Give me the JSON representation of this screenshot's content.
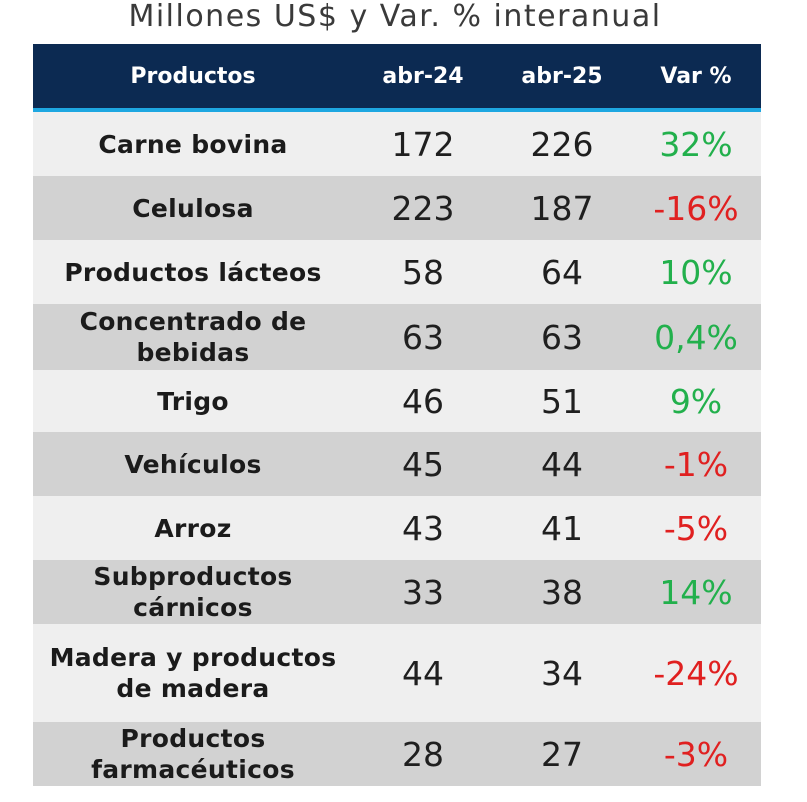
{
  "title": "Millones US$ y Var. % interanual",
  "colors": {
    "header_bg": "#0c2a52",
    "header_accent": "#1ea7e1",
    "positive": "#22b04c",
    "negative": "#e02020",
    "row_light": "#efefef",
    "row_dark": "#d2d2d2"
  },
  "table": {
    "headers": [
      "Productos",
      "abr-24",
      "abr-25",
      "Var %"
    ],
    "rows": [
      {
        "product": "Carne bovina",
        "abr24": "172",
        "abr25": "226",
        "var": "32%",
        "sign": "pos"
      },
      {
        "product": "Celulosa",
        "abr24": "223",
        "abr25": "187",
        "var": "-16%",
        "sign": "neg"
      },
      {
        "product": "Productos lácteos",
        "abr24": "58",
        "abr25": "64",
        "var": "10%",
        "sign": "pos"
      },
      {
        "product": "Concentrado de bebidas",
        "abr24": "63",
        "abr25": "63",
        "var": "0,4%",
        "sign": "pos"
      },
      {
        "product": "Trigo",
        "abr24": "46",
        "abr25": "51",
        "var": "9%",
        "sign": "pos"
      },
      {
        "product": "Vehículos",
        "abr24": "45",
        "abr25": "44",
        "var": "-1%",
        "sign": "neg"
      },
      {
        "product": "Arroz",
        "abr24": "43",
        "abr25": "41",
        "var": "-5%",
        "sign": "neg"
      },
      {
        "product": "Subproductos cárnicos",
        "abr24": "33",
        "abr25": "38",
        "var": "14%",
        "sign": "pos"
      },
      {
        "product": "Madera y productos de madera",
        "abr24": "44",
        "abr25": "34",
        "var": "-24%",
        "sign": "neg"
      },
      {
        "product": "Productos farmacéuticos",
        "abr24": "28",
        "abr25": "27",
        "var": "-3%",
        "sign": "neg"
      }
    ]
  }
}
